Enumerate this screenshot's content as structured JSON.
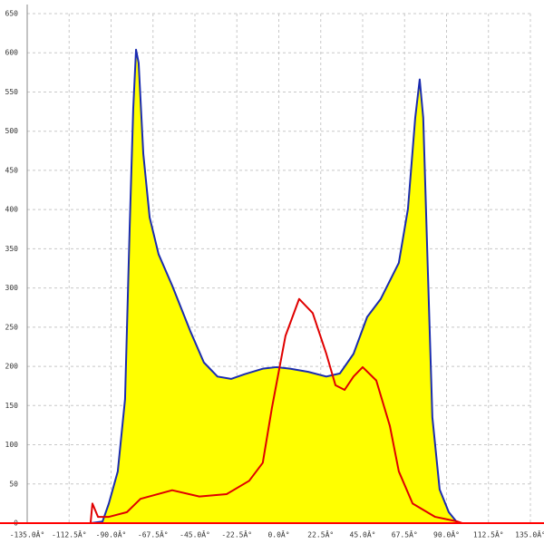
{
  "chart_data": {
    "type": "line",
    "x_format": "numeric",
    "xlim": [
      -135,
      135
    ],
    "xticks": [
      {
        "value": -135,
        "label": "-135.0Â°"
      },
      {
        "value": -112.5,
        "label": "-112.5Â°"
      },
      {
        "value": -90,
        "label": "-90.0Â°"
      },
      {
        "value": -67.5,
        "label": "-67.5Â°"
      },
      {
        "value": -45,
        "label": "-45.0Â°"
      },
      {
        "value": -22.5,
        "label": "-22.5Â°"
      },
      {
        "value": 0,
        "label": "0.0Â°"
      },
      {
        "value": 22.5,
        "label": "22.5Â°"
      },
      {
        "value": 45,
        "label": "45.0Â°"
      },
      {
        "value": 67.5,
        "label": "67.5Â°"
      },
      {
        "value": 90,
        "label": "90.0Â°"
      },
      {
        "value": 112.5,
        "label": "112.5Â°"
      },
      {
        "value": 135,
        "label": "135.0Â°"
      }
    ],
    "ylim": [
      0,
      650
    ],
    "yticks": [
      0,
      50,
      100,
      150,
      200,
      250,
      300,
      350,
      400,
      450,
      500,
      550,
      600,
      650
    ],
    "grid": true,
    "axis_color": "#ff0000",
    "series": [
      {
        "color": "#1a2bb0",
        "fill": "#ffff00",
        "x": [
          -101,
          -94.6,
          -91.2,
          -86.4,
          -82.5,
          -80,
          -78.1,
          -76.6,
          -75.2,
          -72.7,
          -69.3,
          -64.5,
          -57.2,
          -47.5,
          -40.2,
          -32.9,
          -25.6,
          -18.3,
          -8.6,
          -1.3,
          6,
          15.8,
          25.5,
          32.8,
          40.1,
          47.4,
          54.7,
          64.4,
          69.3,
          73.2,
          75.6,
          77.5,
          80,
          82.4,
          86.3,
          91.2,
          96
        ],
        "values": [
          0,
          2,
          25,
          66,
          158,
          378,
          529,
          604,
          587,
          471,
          390,
          343,
          303,
          245,
          205,
          187,
          184,
          190,
          197,
          199,
          197,
          193,
          187,
          191,
          216,
          263,
          286,
          332,
          401,
          517,
          566,
          517,
          320,
          135,
          43,
          14,
          0
        ]
      },
      {
        "color": "#e00000",
        "x": [
          -101,
          -100,
          -97,
          -91.2,
          -81.5,
          -74.2,
          -57.2,
          -42.6,
          -28,
          -15.9,
          -8.6,
          -3.7,
          3.6,
          10.9,
          18.2,
          25.5,
          30.4,
          35.3,
          40.1,
          45,
          52.3,
          59.6,
          64.4,
          71.8,
          83.9,
          96,
          98.4
        ],
        "values": [
          0,
          25,
          8,
          8,
          14,
          31,
          42,
          34,
          37,
          54,
          77,
          147,
          239,
          286,
          268,
          216,
          176,
          170,
          187,
          199,
          182,
          124,
          66,
          25,
          8,
          2,
          0
        ]
      }
    ]
  }
}
